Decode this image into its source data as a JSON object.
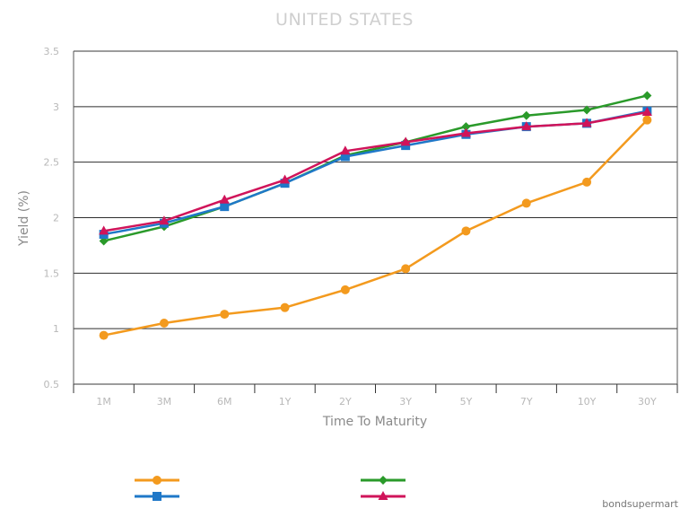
{
  "chart_data": {
    "type": "line",
    "title": "UNITED STATES",
    "xlabel": "Time To Maturity",
    "ylabel": "Yield (%)",
    "categories": [
      "1M",
      "3M",
      "6M",
      "1Y",
      "2Y",
      "3Y",
      "5Y",
      "7Y",
      "10Y",
      "30Y"
    ],
    "ylim": [
      0.5,
      3.5
    ],
    "yticks": [
      0.5,
      1,
      1.5,
      2,
      2.5,
      3,
      3.5
    ],
    "grid": true,
    "legend_position": "bottom",
    "series": [
      {
        "color": "#f39a1e",
        "marker": "circle",
        "values": [
          0.94,
          1.05,
          1.13,
          1.19,
          1.35,
          1.54,
          1.88,
          2.13,
          2.32,
          2.88
        ]
      },
      {
        "color": "#2a9a2a",
        "marker": "diamond",
        "values": [
          1.79,
          1.92,
          2.1,
          2.31,
          2.56,
          2.68,
          2.82,
          2.92,
          2.97,
          3.1
        ]
      },
      {
        "color": "#1f78c8",
        "marker": "square",
        "values": [
          1.85,
          1.95,
          2.1,
          2.31,
          2.55,
          2.65,
          2.75,
          2.82,
          2.85,
          2.96
        ]
      },
      {
        "color": "#d0145a",
        "marker": "triangle",
        "values": [
          1.88,
          1.97,
          2.16,
          2.34,
          2.6,
          2.68,
          2.76,
          2.82,
          2.85,
          2.95
        ]
      }
    ]
  },
  "credit": "bondsupermart"
}
